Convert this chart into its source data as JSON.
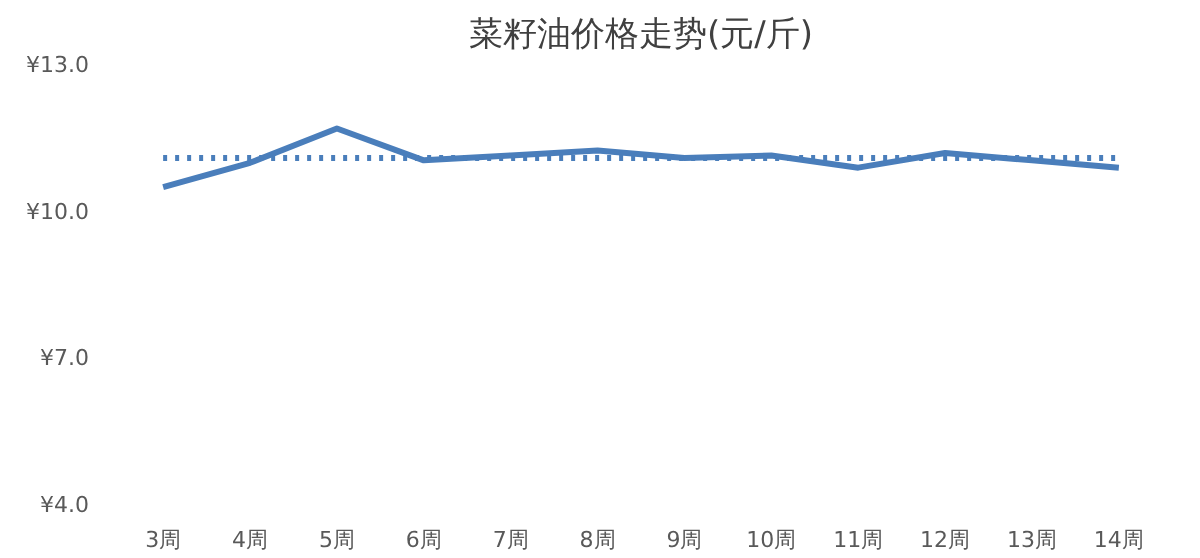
{
  "chart_data": {
    "type": "line",
    "title": "菜籽油价格走势(元/斤)",
    "categories": [
      "3周",
      "4周",
      "5周",
      "6周",
      "7周",
      "8周",
      "9周",
      "10周",
      "11周",
      "12周",
      "13周",
      "14周"
    ],
    "series": [
      {
        "color": "#4a7ebb",
        "values": [
          10.5,
          11.0,
          11.7,
          11.05,
          11.15,
          11.25,
          11.1,
          11.15,
          10.9,
          11.2,
          11.05,
          10.9
        ]
      },
      {
        "color": "#4a7ebb",
        "line_style": "dotted",
        "values": [
          11.1,
          11.1,
          11.1,
          11.1,
          11.1,
          11.1,
          11.1,
          11.1,
          11.1,
          11.1,
          11.1,
          11.1
        ]
      }
    ],
    "ylim": [
      4,
      13
    ],
    "yticks": [
      {
        "value": 4,
        "label": "¥4.0"
      },
      {
        "value": 7,
        "label": "¥7.0"
      },
      {
        "value": 10,
        "label": "¥10.0"
      },
      {
        "value": 13,
        "label": "¥13.0"
      }
    ],
    "grid": false
  }
}
